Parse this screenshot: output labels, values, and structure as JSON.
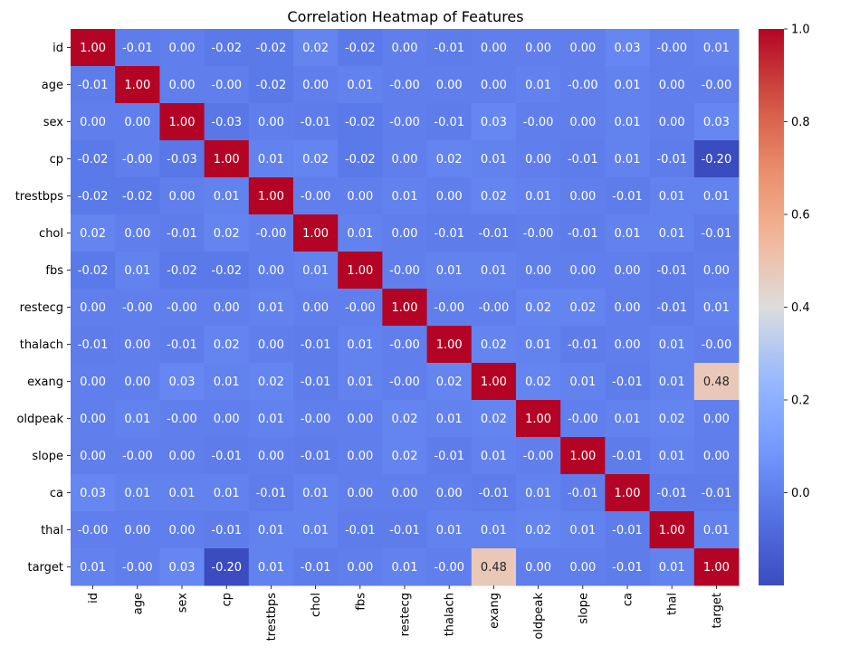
{
  "chart_data": {
    "type": "heatmap",
    "title": "Correlation Heatmap of Features",
    "colormap": "coolwarm",
    "value_range": [
      -0.2,
      1.0
    ],
    "annotation_format": "0.00",
    "x_labels": [
      "id",
      "age",
      "sex",
      "cp",
      "trestbps",
      "chol",
      "fbs",
      "restecg",
      "thalach",
      "exang",
      "oldpeak",
      "slope",
      "ca",
      "thal",
      "target"
    ],
    "y_labels": [
      "id",
      "age",
      "sex",
      "cp",
      "trestbps",
      "chol",
      "fbs",
      "restecg",
      "thalach",
      "exang",
      "oldpeak",
      "slope",
      "ca",
      "thal",
      "target"
    ],
    "colorbar_ticks": [
      0.0,
      0.2,
      0.4,
      0.6,
      0.8,
      1.0
    ],
    "colorbar_tick_labels": [
      "0.0",
      "0.2",
      "0.4",
      "0.6",
      "0.8",
      "1.0"
    ],
    "matrix": [
      [
        1.0,
        -0.01,
        0.0,
        -0.02,
        -0.02,
        0.02,
        -0.02,
        0.0,
        -0.01,
        0.0,
        0.0,
        0.0,
        0.03,
        -0.0,
        0.01
      ],
      [
        -0.01,
        1.0,
        0.0,
        -0.0,
        -0.02,
        0.0,
        0.01,
        -0.0,
        0.0,
        0.0,
        0.01,
        -0.0,
        0.01,
        0.0,
        -0.0
      ],
      [
        0.0,
        0.0,
        1.0,
        -0.03,
        0.0,
        -0.01,
        -0.02,
        -0.0,
        -0.01,
        0.03,
        -0.0,
        0.0,
        0.01,
        0.0,
        0.03
      ],
      [
        -0.02,
        -0.0,
        -0.03,
        1.0,
        0.01,
        0.02,
        -0.02,
        0.0,
        0.02,
        0.01,
        0.0,
        -0.01,
        0.01,
        -0.01,
        -0.2
      ],
      [
        -0.02,
        -0.02,
        0.0,
        0.01,
        1.0,
        -0.0,
        0.0,
        0.01,
        0.0,
        0.02,
        0.01,
        0.0,
        -0.01,
        0.01,
        0.01
      ],
      [
        0.02,
        0.0,
        -0.01,
        0.02,
        -0.0,
        1.0,
        0.01,
        0.0,
        -0.01,
        -0.01,
        -0.0,
        -0.01,
        0.01,
        0.01,
        -0.01
      ],
      [
        -0.02,
        0.01,
        -0.02,
        -0.02,
        0.0,
        0.01,
        1.0,
        -0.0,
        0.01,
        0.01,
        0.0,
        0.0,
        0.0,
        -0.01,
        0.0
      ],
      [
        0.0,
        -0.0,
        -0.0,
        0.0,
        0.01,
        0.0,
        -0.0,
        1.0,
        -0.0,
        -0.0,
        0.02,
        0.02,
        0.0,
        -0.01,
        0.01
      ],
      [
        -0.01,
        0.0,
        -0.01,
        0.02,
        0.0,
        -0.01,
        0.01,
        -0.0,
        1.0,
        0.02,
        0.01,
        -0.01,
        0.0,
        0.01,
        -0.0
      ],
      [
        0.0,
        0.0,
        0.03,
        0.01,
        0.02,
        -0.01,
        0.01,
        -0.0,
        0.02,
        1.0,
        0.02,
        0.01,
        -0.01,
        0.01,
        0.48
      ],
      [
        0.0,
        0.01,
        -0.0,
        0.0,
        0.01,
        -0.0,
        0.0,
        0.02,
        0.01,
        0.02,
        1.0,
        -0.0,
        0.01,
        0.02,
        0.0
      ],
      [
        0.0,
        -0.0,
        0.0,
        -0.01,
        0.0,
        -0.01,
        0.0,
        0.02,
        -0.01,
        0.01,
        -0.0,
        1.0,
        -0.01,
        0.01,
        0.0
      ],
      [
        0.03,
        0.01,
        0.01,
        0.01,
        -0.01,
        0.01,
        0.0,
        0.0,
        0.0,
        -0.01,
        0.01,
        -0.01,
        1.0,
        -0.01,
        -0.01
      ],
      [
        -0.0,
        0.0,
        0.0,
        -0.01,
        0.01,
        0.01,
        -0.01,
        -0.01,
        0.01,
        0.01,
        0.02,
        0.01,
        -0.01,
        1.0,
        0.01
      ],
      [
        0.01,
        -0.0,
        0.03,
        -0.2,
        0.01,
        -0.01,
        0.0,
        0.01,
        -0.0,
        0.48,
        0.0,
        0.0,
        -0.01,
        0.01,
        1.0
      ]
    ],
    "cell_labels": [
      [
        "1.00",
        "-0.01",
        "0.00",
        "-0.02",
        "-0.02",
        "0.02",
        "-0.02",
        "0.00",
        "-0.01",
        "0.00",
        "0.00",
        "0.00",
        "0.03",
        "-0.00",
        "0.01"
      ],
      [
        "-0.01",
        "1.00",
        "0.00",
        "-0.00",
        "-0.02",
        "0.00",
        "0.01",
        "-0.00",
        "0.00",
        "0.00",
        "0.01",
        "-0.00",
        "0.01",
        "0.00",
        "-0.00"
      ],
      [
        "0.00",
        "0.00",
        "1.00",
        "-0.03",
        "0.00",
        "-0.01",
        "-0.02",
        "-0.00",
        "-0.01",
        "0.03",
        "-0.00",
        "0.00",
        "0.01",
        "0.00",
        "0.03"
      ],
      [
        "-0.02",
        "-0.00",
        "-0.03",
        "1.00",
        "0.01",
        "0.02",
        "-0.02",
        "0.00",
        "0.02",
        "0.01",
        "0.00",
        "-0.01",
        "0.01",
        "-0.01",
        "-0.20"
      ],
      [
        "-0.02",
        "-0.02",
        "0.00",
        "0.01",
        "1.00",
        "-0.00",
        "0.00",
        "0.01",
        "0.00",
        "0.02",
        "0.01",
        "0.00",
        "-0.01",
        "0.01",
        "0.01"
      ],
      [
        "0.02",
        "0.00",
        "-0.01",
        "0.02",
        "-0.00",
        "1.00",
        "0.01",
        "0.00",
        "-0.01",
        "-0.01",
        "-0.00",
        "-0.01",
        "0.01",
        "0.01",
        "-0.01"
      ],
      [
        "-0.02",
        "0.01",
        "-0.02",
        "-0.02",
        "0.00",
        "0.01",
        "1.00",
        "-0.00",
        "0.01",
        "0.01",
        "0.00",
        "0.00",
        "0.00",
        "-0.01",
        "0.00"
      ],
      [
        "0.00",
        "-0.00",
        "-0.00",
        "0.00",
        "0.01",
        "0.00",
        "-0.00",
        "1.00",
        "-0.00",
        "-0.00",
        "0.02",
        "0.02",
        "0.00",
        "-0.01",
        "0.01"
      ],
      [
        "-0.01",
        "0.00",
        "-0.01",
        "0.02",
        "0.00",
        "-0.01",
        "0.01",
        "-0.00",
        "1.00",
        "0.02",
        "0.01",
        "-0.01",
        "0.00",
        "0.01",
        "-0.00"
      ],
      [
        "0.00",
        "0.00",
        "0.03",
        "0.01",
        "0.02",
        "-0.01",
        "0.01",
        "-0.00",
        "0.02",
        "1.00",
        "0.02",
        "0.01",
        "-0.01",
        "0.01",
        "0.48"
      ],
      [
        "0.00",
        "0.01",
        "-0.00",
        "0.00",
        "0.01",
        "-0.00",
        "0.00",
        "0.02",
        "0.01",
        "0.02",
        "1.00",
        "-0.00",
        "0.01",
        "0.02",
        "0.00"
      ],
      [
        "0.00",
        "-0.00",
        "0.00",
        "-0.01",
        "0.00",
        "-0.01",
        "0.00",
        "0.02",
        "-0.01",
        "0.01",
        "-0.00",
        "1.00",
        "-0.01",
        "0.01",
        "0.00"
      ],
      [
        "0.03",
        "0.01",
        "0.01",
        "0.01",
        "-0.01",
        "0.01",
        "0.00",
        "0.00",
        "0.00",
        "-0.01",
        "0.01",
        "-0.01",
        "1.00",
        "-0.01",
        "-0.01"
      ],
      [
        "-0.00",
        "0.00",
        "0.00",
        "-0.01",
        "0.01",
        "0.01",
        "-0.01",
        "-0.01",
        "0.01",
        "0.01",
        "0.02",
        "0.01",
        "-0.01",
        "1.00",
        "0.01"
      ],
      [
        "0.01",
        "-0.00",
        "0.03",
        "-0.20",
        "0.01",
        "-0.01",
        "0.00",
        "0.01",
        "-0.00",
        "0.48",
        "0.00",
        "0.00",
        "-0.01",
        "0.01",
        "1.00"
      ]
    ]
  }
}
